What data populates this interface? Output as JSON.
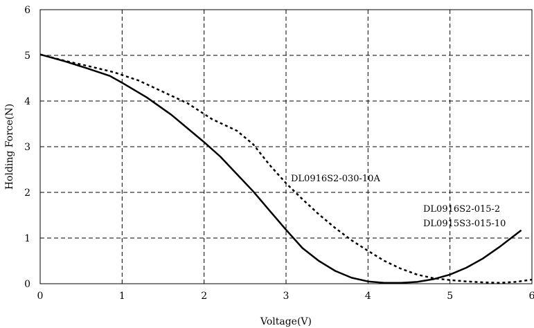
{
  "chart_data": {
    "type": "line",
    "title": "",
    "xlabel": "Voltage(V)",
    "ylabel": "Holding Force(N)",
    "xlim": [
      0,
      6
    ],
    "ylim": [
      0,
      6
    ],
    "x_ticks": [
      "0",
      "1",
      "2",
      "3",
      "4",
      "5",
      "6"
    ],
    "y_ticks": [
      "0",
      "1",
      "2",
      "3",
      "4",
      "5",
      "6"
    ],
    "grid": true,
    "annotations": [
      {
        "text": "DL0916S2-030-10A"
      },
      {
        "text": "DL0916S2-015-2"
      },
      {
        "text": "DL0915S3-015-10"
      }
    ],
    "series": [
      {
        "style": "solid",
        "color": "#000000",
        "x": [
          0,
          0.3,
          0.6,
          0.85,
          1.0,
          1.3,
          1.6,
          1.9,
          2.0,
          2.2,
          2.4,
          2.6,
          2.8,
          3.0,
          3.2,
          3.4,
          3.6,
          3.8,
          4.0,
          4.2,
          4.4,
          4.6,
          4.8,
          5.0,
          5.2,
          5.4,
          5.6,
          5.87
        ],
        "y": [
          5.02,
          4.87,
          4.7,
          4.55,
          4.4,
          4.08,
          3.7,
          3.25,
          3.1,
          2.78,
          2.4,
          2.02,
          1.6,
          1.18,
          0.78,
          0.5,
          0.28,
          0.13,
          0.05,
          0.02,
          0.02,
          0.04,
          0.1,
          0.2,
          0.35,
          0.55,
          0.8,
          1.17
        ]
      },
      {
        "style": "dotted",
        "color": "#000000",
        "x": [
          0,
          0.3,
          0.6,
          0.9,
          1.2,
          1.5,
          1.8,
          2.1,
          2.4,
          2.6,
          2.8,
          3.0,
          3.2,
          3.4,
          3.6,
          3.8,
          4.0,
          4.2,
          4.4,
          4.6,
          4.8,
          5.0,
          5.2,
          5.4,
          5.6,
          5.8,
          6.0
        ],
        "y": [
          5.02,
          4.88,
          4.76,
          4.63,
          4.45,
          4.2,
          3.95,
          3.6,
          3.35,
          3.05,
          2.6,
          2.2,
          1.85,
          1.52,
          1.22,
          0.95,
          0.72,
          0.5,
          0.33,
          0.2,
          0.12,
          0.08,
          0.05,
          0.03,
          0.02,
          0.04,
          0.09
        ]
      }
    ]
  }
}
